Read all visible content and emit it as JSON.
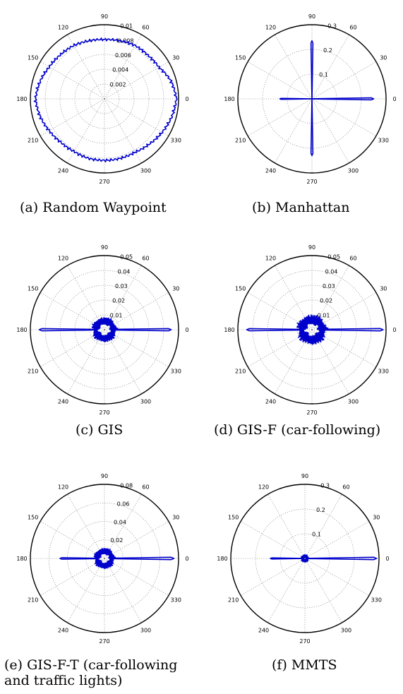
{
  "figure": {
    "panels": [
      {
        "caption": "(a) Random Waypoint",
        "angle_labels": [
          "0",
          "30",
          "60",
          "90",
          "120",
          "150",
          "180",
          "210",
          "240",
          "270",
          "300",
          "330"
        ],
        "r_ticks": [
          "0.002",
          "0.004",
          "0.006",
          "0.008",
          "0.01"
        ],
        "r_max": 0.01,
        "series_color": "#0000cc",
        "chart_data": {
          "type": "polar-line",
          "title": "",
          "theta_unit": "degrees",
          "rmax": 0.01,
          "shape": "near-uniform",
          "theta": [
            0,
            15,
            30,
            45,
            60,
            75,
            90,
            105,
            120,
            135,
            150,
            165,
            180,
            195,
            210,
            225,
            240,
            255,
            270,
            285,
            300,
            315,
            330,
            345
          ],
          "r": [
            0.0097,
            0.0093,
            0.0085,
            0.0083,
            0.0083,
            0.0081,
            0.008,
            0.0081,
            0.0083,
            0.0084,
            0.0086,
            0.009,
            0.0093,
            0.009,
            0.0086,
            0.0083,
            0.0082,
            0.0083,
            0.0083,
            0.0083,
            0.0083,
            0.0086,
            0.009,
            0.0094
          ]
        }
      },
      {
        "caption": "(b) Manhattan",
        "angle_labels": [
          "0",
          "30",
          "60",
          "90",
          "120",
          "150",
          "180",
          "210",
          "240",
          "270",
          "300",
          "330"
        ],
        "r_ticks": [
          "0.1",
          "0.2",
          "0.3"
        ],
        "r_max": 0.3,
        "series_color": "#0000cc",
        "chart_data": {
          "type": "polar-line",
          "title": "",
          "theta_unit": "degrees",
          "rmax": 0.3,
          "shape": "cross",
          "spikes": [
            {
              "theta": 0,
              "r": 0.25
            },
            {
              "theta": 90,
              "r": 0.235
            },
            {
              "theta": 180,
              "r": 0.13
            },
            {
              "theta": 270,
              "r": 0.23
            }
          ],
          "base_r": 0.002
        }
      },
      {
        "caption": "(c) GIS",
        "angle_labels": [
          "0",
          "30",
          "60",
          "90",
          "120",
          "150",
          "180",
          "210",
          "240",
          "270",
          "300",
          "330"
        ],
        "r_ticks": [
          "0.01",
          "0.02",
          "0.03",
          "0.04",
          "0.05"
        ],
        "r_max": 0.05,
        "series_color": "#0000cc",
        "chart_data": {
          "type": "polar-line",
          "title": "",
          "theta_unit": "degrees",
          "rmax": 0.05,
          "shape": "east-west",
          "spikes": [
            {
              "theta": 0,
              "r": 0.045
            },
            {
              "theta": 180,
              "r": 0.044
            }
          ],
          "base_r": 0.006,
          "noise": 0.003
        }
      },
      {
        "caption": "(d) GIS-F (car-following)",
        "angle_labels": [
          "0",
          "30",
          "60",
          "90",
          "120",
          "150",
          "180",
          "210",
          "240",
          "270",
          "300",
          "330"
        ],
        "r_ticks": [
          "0.01",
          "0.02",
          "0.03",
          "0.04",
          "0.05"
        ],
        "r_max": 0.05,
        "series_color": "#0000cc",
        "chart_data": {
          "type": "polar-line",
          "title": "",
          "theta_unit": "degrees",
          "rmax": 0.05,
          "shape": "east-west",
          "spikes": [
            {
              "theta": 0,
              "r": 0.048
            },
            {
              "theta": 180,
              "r": 0.044
            }
          ],
          "base_r": 0.007,
          "noise": 0.004
        }
      },
      {
        "caption": "(e) GIS-F-T (car-following and traffic lights)",
        "angle_labels": [
          "0",
          "30",
          "60",
          "90",
          "120",
          "150",
          "180",
          "210",
          "240",
          "270",
          "300",
          "330"
        ],
        "r_ticks": [
          "0.02",
          "0.04",
          "0.06",
          "0.08"
        ],
        "r_max": 0.08,
        "series_color": "#0000cc",
        "chart_data": {
          "type": "polar-line",
          "title": "",
          "theta_unit": "degrees",
          "rmax": 0.08,
          "shape": "east-west",
          "spikes": [
            {
              "theta": 0,
              "r": 0.075
            },
            {
              "theta": 180,
              "r": 0.048
            }
          ],
          "base_r": 0.008,
          "noise": 0.004
        }
      },
      {
        "caption": "(f) MMTS",
        "angle_labels": [
          "0",
          "30",
          "60",
          "90",
          "120",
          "150",
          "180",
          "210",
          "240",
          "270",
          "300",
          "330"
        ],
        "r_ticks": [
          "0.1",
          "0.2",
          "0.3"
        ],
        "r_max": 0.3,
        "series_color": "#0000cc",
        "chart_data": {
          "type": "polar-line",
          "title": "",
          "theta_unit": "degrees",
          "rmax": 0.3,
          "shape": "east-west",
          "spikes": [
            {
              "theta": 0,
              "r": 0.29
            },
            {
              "theta": 180,
              "r": 0.14
            }
          ],
          "base_r": 0.01,
          "noise": 0.006
        }
      }
    ]
  }
}
